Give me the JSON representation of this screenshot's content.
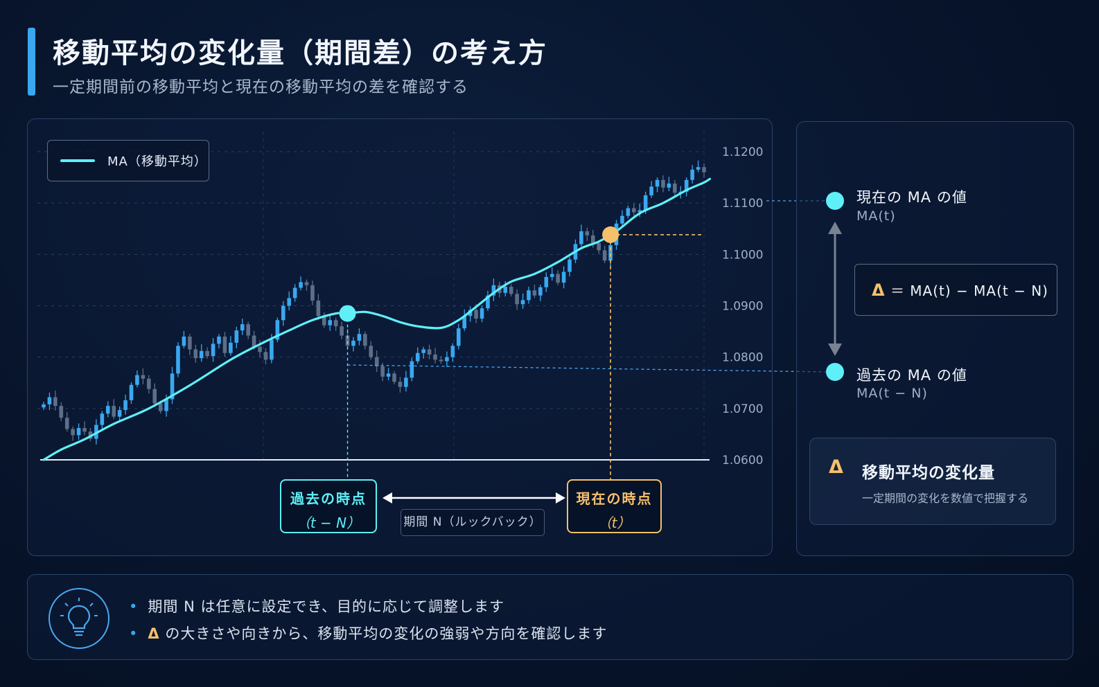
{
  "header": {
    "title": "移動平均の変化量（期間差）の考え方",
    "subtitle": "一定期間前の移動平均と現在の移動平均の差を確認する"
  },
  "chart_data": {
    "type": "candlestick-line",
    "legend": [
      {
        "name": "MA（移動平均）",
        "color": "#5ff0f7"
      }
    ],
    "legend_position": "top-left",
    "ylim": [
      1.06,
      1.12
    ],
    "yticks": [
      "1.1200",
      "1.1100",
      "1.1000",
      "1.0900",
      "1.0800",
      "1.0700",
      "1.0600"
    ],
    "grid": true,
    "candles_close": [
      1.0708,
      1.0722,
      1.0705,
      1.0682,
      1.066,
      1.0648,
      1.0662,
      1.0655,
      1.0641,
      1.0668,
      1.069,
      1.0705,
      1.0684,
      1.0697,
      1.0716,
      1.0746,
      1.0765,
      1.0758,
      1.0738,
      1.071,
      1.0695,
      1.0718,
      1.0768,
      1.0822,
      1.084,
      1.0815,
      1.0798,
      1.0812,
      1.0802,
      1.0826,
      1.084,
      1.0808,
      1.0828,
      1.0852,
      1.0864,
      1.0842,
      1.082,
      1.081,
      1.0795,
      1.0834,
      1.0872,
      1.09,
      1.0915,
      1.0935,
      1.0946,
      1.094,
      1.091,
      1.088,
      1.0862,
      1.0872,
      1.086,
      1.0842,
      1.0822,
      1.0832,
      1.0845,
      1.0822,
      1.08,
      1.0782,
      1.0762,
      1.0768,
      1.0752,
      1.0742,
      1.076,
      1.0792,
      1.0808,
      1.0815,
      1.0805,
      1.0795,
      1.0792,
      1.08,
      1.0822,
      1.0856,
      1.088,
      1.0892,
      1.0875,
      1.0895,
      1.092,
      1.094,
      1.0925,
      1.0937,
      1.0923,
      1.0903,
      1.0911,
      1.093,
      1.092,
      1.0936,
      1.0956,
      1.0962,
      1.0945,
      1.0966,
      1.099,
      1.102,
      1.1045,
      1.1037,
      1.1022,
      1.1008,
      1.0988,
      1.1018,
      1.106,
      1.1075,
      1.109,
      1.1082,
      1.1086,
      1.1115,
      1.1132,
      1.1145,
      1.113,
      1.1138,
      1.112,
      1.1122,
      1.1145,
      1.1165,
      1.117,
      1.116
    ],
    "ma": [
      [
        0,
        1.06
      ],
      [
        3,
        1.062
      ],
      [
        7,
        1.064
      ],
      [
        12,
        1.067
      ],
      [
        18,
        1.07
      ],
      [
        25,
        1.0745
      ],
      [
        32,
        1.0795
      ],
      [
        37,
        1.0825
      ],
      [
        42,
        1.0852
      ],
      [
        46,
        1.0872
      ],
      [
        50,
        1.0885
      ],
      [
        52,
        1.0885
      ],
      [
        55,
        1.0888
      ],
      [
        58,
        1.088
      ],
      [
        61,
        1.0868
      ],
      [
        64,
        1.086
      ],
      [
        68,
        1.0857
      ],
      [
        71,
        1.0872
      ],
      [
        74,
        1.0898
      ],
      [
        77,
        1.0925
      ],
      [
        80,
        1.0947
      ],
      [
        84,
        1.0962
      ],
      [
        88,
        1.0985
      ],
      [
        92,
        1.1012
      ],
      [
        95,
        1.1025
      ],
      [
        98,
        1.1045
      ],
      [
        102,
        1.108
      ],
      [
        106,
        1.11
      ],
      [
        110,
        1.1125
      ],
      [
        113,
        1.114
      ],
      [
        114,
        1.1147
      ]
    ],
    "ma_note": "MA values follow the same price scale",
    "markers": {
      "past": {
        "index": 52,
        "label": "過去の時点",
        "sub": "（t − N）"
      },
      "now": {
        "index": 97,
        "label": "現在の時点",
        "sub": "（t）"
      }
    },
    "period_label": "期間 N（ルックバック）"
  },
  "right_panel": {
    "current_label": "現在の MA の値",
    "current_sub": "MA(t)",
    "past_label": "過去の MA の値",
    "past_sub": "MA(t − N)",
    "formula_delta": "Δ",
    "formula": "＝ MA(t) − MA(t − N)",
    "summary_delta": "Δ",
    "summary_title": "移動平均の変化量",
    "summary_desc": "一定期間の変化を数値で把握する"
  },
  "tips": {
    "bulb_icon": "lightbulb-icon",
    "items": [
      {
        "prefix": "",
        "text": "期間 N は任意に設定でき、目的に応じて調整します"
      },
      {
        "prefix": "Δ",
        "text": " の大きさや向きから、移動平均の変化の強弱や方向を確認します"
      }
    ]
  },
  "colors": {
    "ma": "#5ff0f7",
    "accent": "#3aa8f0",
    "past": "#5ff0f7",
    "now": "#f7c06b",
    "up": "#3aa8f0",
    "down": "#5d6f88"
  }
}
